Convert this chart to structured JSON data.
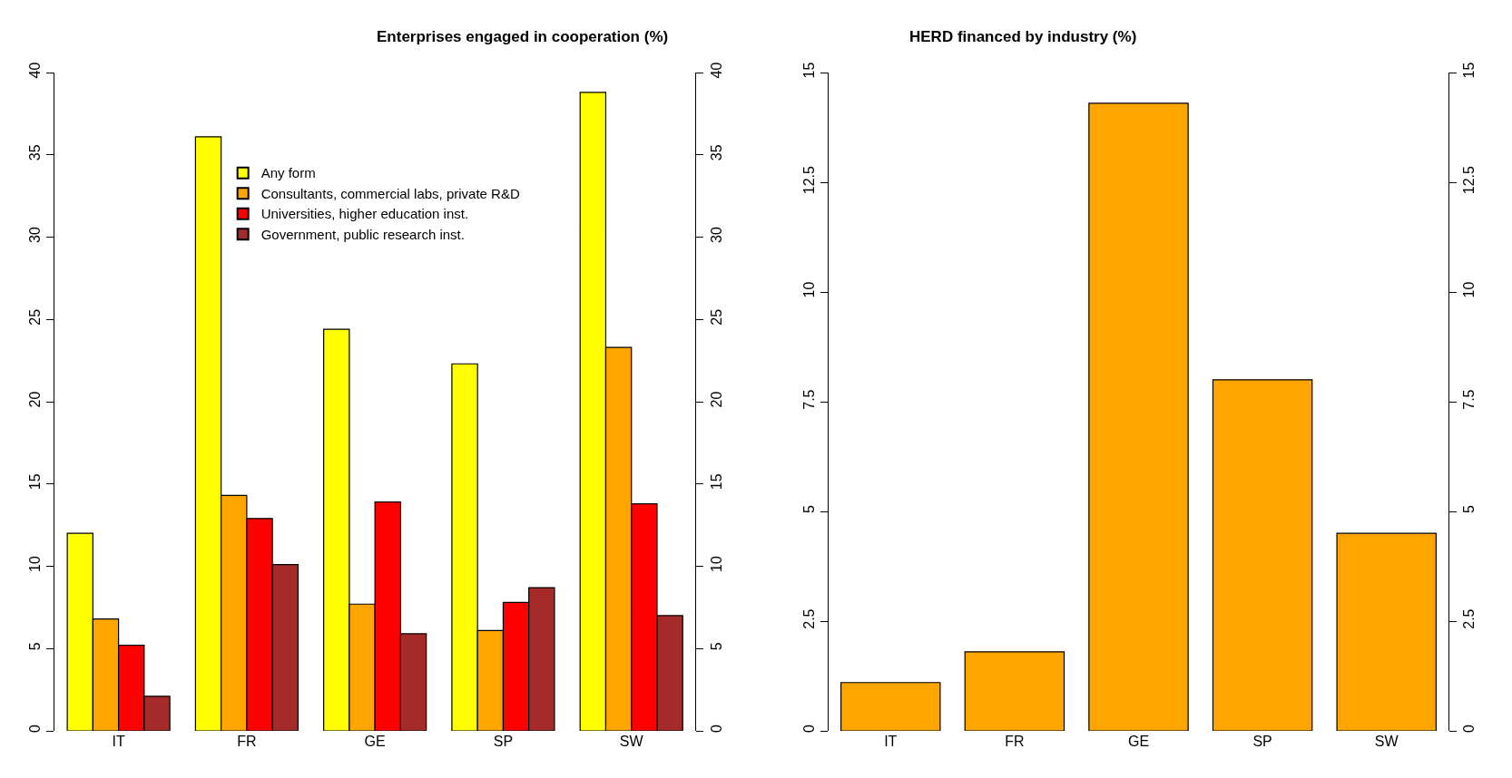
{
  "chart_data": [
    {
      "type": "bar",
      "title": "Enterprises engaged in cooperation (%)",
      "categories": [
        "IT",
        "FR",
        "GE",
        "SP",
        "SW"
      ],
      "series": [
        {
          "name": "Any form",
          "color": "#ffff00",
          "values": [
            12.0,
            36.1,
            24.4,
            22.3,
            38.8
          ]
        },
        {
          "name": "Consultants, commercial labs, private R&D",
          "color": "#ffa500",
          "values": [
            6.8,
            14.3,
            7.7,
            6.1,
            23.3
          ]
        },
        {
          "name": "Universities, higher education inst.",
          "color": "#ff0000",
          "values": [
            5.2,
            12.9,
            13.9,
            7.8,
            13.8
          ]
        },
        {
          "name": "Government, public research inst.",
          "color": "#a52a2a",
          "values": [
            2.1,
            10.1,
            5.9,
            8.7,
            7.0
          ]
        }
      ],
      "ylim": [
        0,
        40
      ],
      "yticks": [
        0,
        5,
        10,
        15,
        20,
        25,
        30,
        35,
        40
      ],
      "y2lim": [
        0,
        40
      ],
      "y2ticks": [
        0,
        5,
        10,
        15,
        20,
        25,
        30,
        35,
        40
      ],
      "legend": "top"
    },
    {
      "type": "bar",
      "title": "HERD financed by industry (%)",
      "categories": [
        "IT",
        "FR",
        "GE",
        "SP",
        "SW"
      ],
      "values": [
        1.1,
        1.8,
        14.3,
        8.0,
        4.5
      ],
      "color": "#ffa500",
      "ylim": [
        0,
        15
      ],
      "yticks": [
        0,
        2.5,
        5,
        7.5,
        10,
        12.5,
        15
      ],
      "y2lim": [
        0,
        15
      ],
      "y2ticks": [
        0,
        2.5,
        5,
        7.5,
        10,
        12.5,
        15
      ]
    }
  ]
}
